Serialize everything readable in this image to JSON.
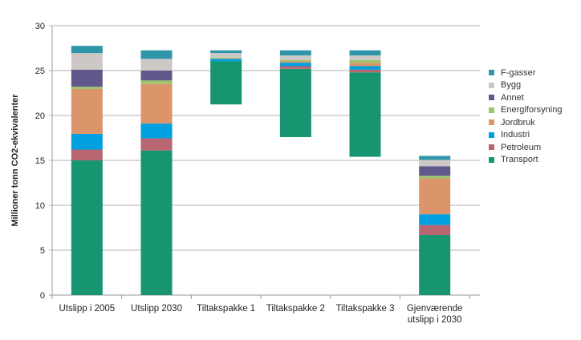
{
  "chart_data": {
    "type": "bar",
    "stacked": true,
    "waterfall": true,
    "title": "",
    "xlabel": "",
    "ylabel": "Millioner tonn CO2-ekvivalenter",
    "ylim": [
      0,
      30
    ],
    "yticks": [
      0,
      5,
      10,
      15,
      20,
      25,
      30
    ],
    "grid": true,
    "legend_position": "right",
    "categories": [
      "Utslipp i 2005",
      "Utslipp 2030",
      "Tiltakspakke 1",
      "Tiltakspakke 2",
      "Tiltakspakke 3",
      "Gjenværende utslipp i 2030"
    ],
    "category_label_lines": [
      [
        "Utslipp i 2005"
      ],
      [
        "Utslipp 2030"
      ],
      [
        "Tiltakspakke 1"
      ],
      [
        "Tiltakspakke 2"
      ],
      [
        "Tiltakspakke 3"
      ],
      [
        "Gjenværende",
        "utslipp i 2030"
      ]
    ],
    "bar_kind": [
      "total",
      "total",
      "reduction",
      "reduction",
      "reduction",
      "total"
    ],
    "series": [
      {
        "name": "Transport",
        "color": "#169570",
        "values": [
          15.0,
          16.1,
          4.8,
          7.6,
          9.4,
          6.7
        ]
      },
      {
        "name": "Petroleum",
        "color": "#b76570",
        "values": [
          1.2,
          1.35,
          0.0,
          0.3,
          0.3,
          1.1
        ]
      },
      {
        "name": "Industri",
        "color": "#009fdf",
        "values": [
          1.75,
          1.65,
          0.27,
          0.39,
          0.39,
          1.2
        ]
      },
      {
        "name": "Jordbruk",
        "color": "#dc956a",
        "values": [
          5.0,
          4.4,
          0.05,
          0.15,
          0.39,
          4.0
        ]
      },
      {
        "name": "Energiforsyning",
        "color": "#9bc46f",
        "values": [
          0.25,
          0.4,
          0.1,
          0.15,
          0.3,
          0.3
        ]
      },
      {
        "name": "Annet",
        "color": "#61578a",
        "values": [
          1.9,
          1.1,
          0.0,
          0.0,
          0.0,
          1.05
        ]
      },
      {
        "name": "Bygg",
        "color": "#cdc8c6",
        "values": [
          1.85,
          1.3,
          0.5,
          0.5,
          0.5,
          0.7
        ]
      },
      {
        "name": "F-gasser",
        "color": "#2f96a9",
        "values": [
          0.8,
          0.95,
          0.3,
          0.57,
          0.57,
          0.45
        ]
      }
    ]
  }
}
